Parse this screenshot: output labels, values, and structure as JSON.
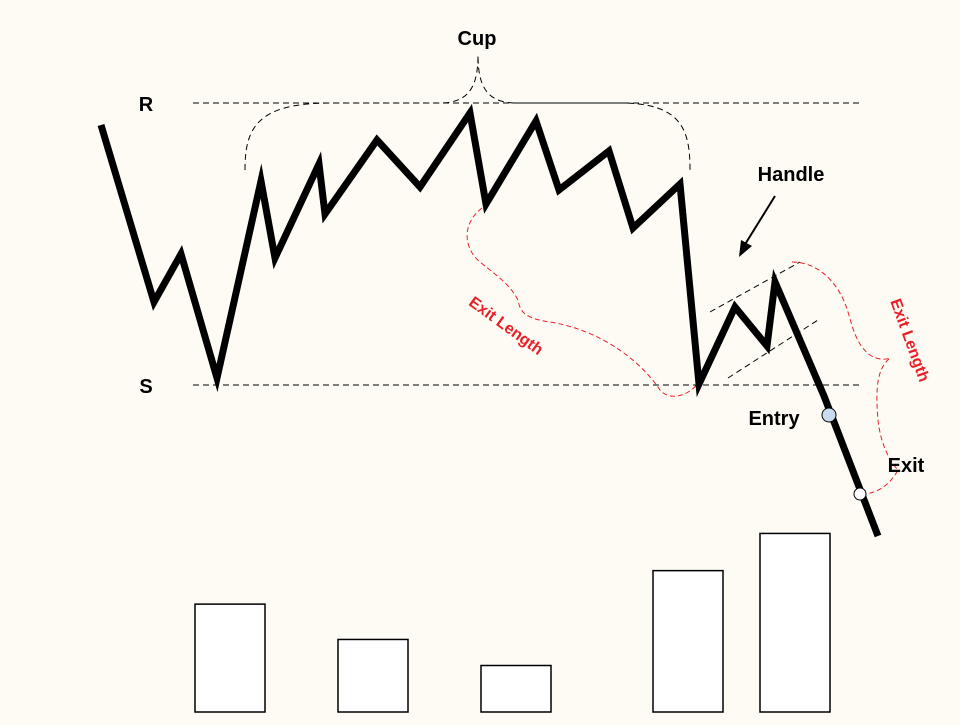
{
  "labels": {
    "resistance": "R",
    "support": "S",
    "cup": "Cup",
    "handle": "Handle",
    "exit_length_left": "Exit Length",
    "exit_length_right": "Exit Length",
    "entry": "Entry",
    "exit": "Exit"
  },
  "colors": {
    "background": "#fdfbf3",
    "price_line": "#000000",
    "annotation_red": "#e8202a",
    "guide_dashed": "#000000",
    "entry_marker": "#c9dcef",
    "exit_marker": "#ffffff",
    "volume_bar_fill": "#ffffff"
  },
  "volume_bars": {
    "count": 5,
    "relative_heights": [
      0.58,
      0.39,
      0.25,
      0.76,
      0.96
    ]
  }
}
